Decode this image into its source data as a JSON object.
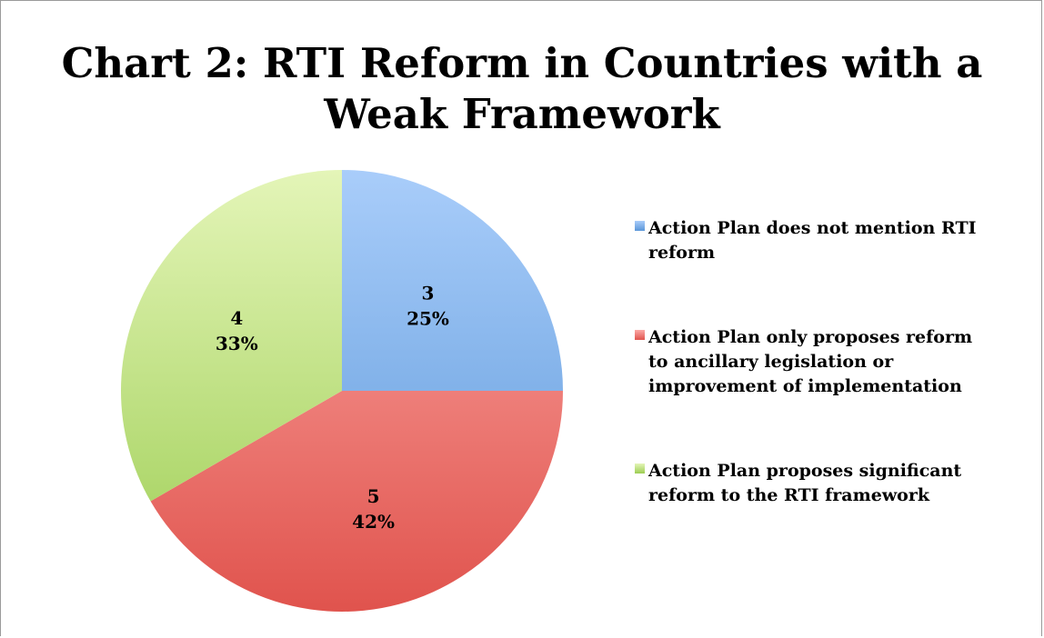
{
  "chart_data": {
    "type": "pie",
    "title_lines": [
      "Chart 2: RTI Reform in Countries with a",
      "Weak Framework"
    ],
    "slices": [
      {
        "label": "Action Plan does not mention RTI reform",
        "value": 3,
        "percent": "25%",
        "color": "#5a96d8",
        "color_light": "#a9cdfa"
      },
      {
        "label": "Action Plan only proposes reform to ancillary legislation or improvement of implementation",
        "value": 5,
        "percent": "42%",
        "color": "#e0534d",
        "color_light": "#fcaaa6"
      },
      {
        "label": "Action Plan proposes significant reform to the RTI framework",
        "value": 4,
        "percent": "33%",
        "color": "#9ccd52",
        "color_light": "#e4f5b8"
      }
    ],
    "legend_position": "right",
    "start_angle": "12 o'clock",
    "direction": "clockwise"
  },
  "legend": {
    "items": [
      {
        "text_lines": [
          "Action Plan does not mention RTI",
          "reform"
        ],
        "color": "#5a96d8"
      },
      {
        "text_lines": [
          "Action Plan only proposes reform",
          "to ancillary legislation or",
          "improvement of implementation"
        ],
        "color": "#e0534d"
      },
      {
        "text_lines": [
          "Action Plan proposes significant",
          "reform to the RTI framework"
        ],
        "color": "#9ccd52"
      }
    ]
  }
}
